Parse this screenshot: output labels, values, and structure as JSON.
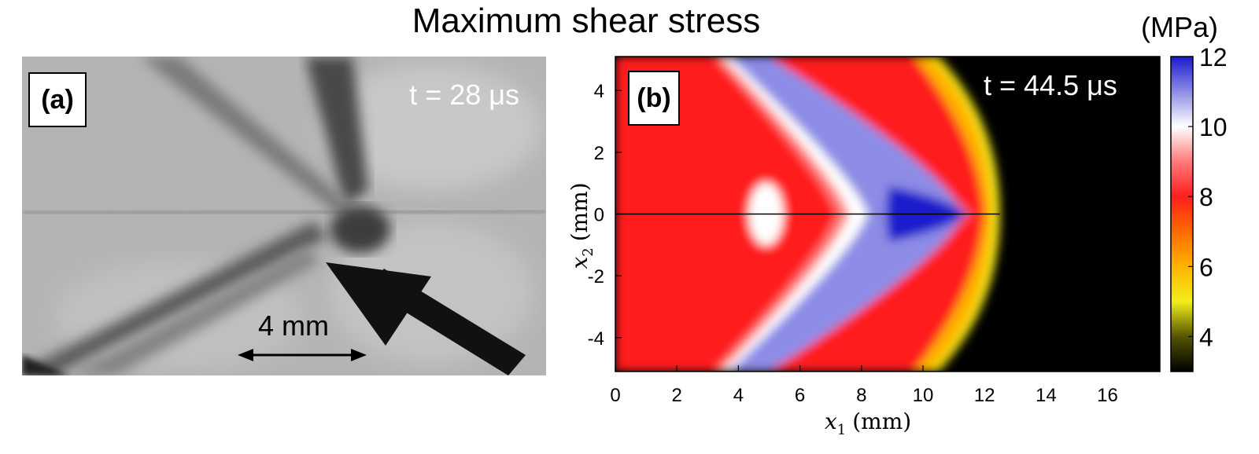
{
  "title": "Maximum shear stress",
  "panel_a": {
    "label": "(a)",
    "time_label": "t = 28 μs",
    "scale_bar_label": "4 mm"
  },
  "panel_b": {
    "label": "(b)",
    "time_label": "t = 44.5 μs",
    "colorbar_unit": "(MPa)"
  },
  "chart_data": {
    "type": "heatmap",
    "title": "Maximum shear stress",
    "xlabel": "x1 (mm)",
    "ylabel": "x2 (mm)",
    "xlim": [
      0,
      17.7
    ],
    "ylim": [
      -5.1,
      5.1
    ],
    "x_ticks": [
      0,
      2,
      4,
      6,
      8,
      10,
      12,
      14,
      16
    ],
    "y_ticks": [
      4,
      2,
      0,
      -2,
      -4
    ],
    "colorbar": {
      "label": "(MPa)",
      "range": [
        3,
        12
      ],
      "ticks": [
        4,
        6,
        8,
        10,
        12
      ],
      "colormap": [
        {
          "value": 3,
          "color": "#000000"
        },
        {
          "value": 4,
          "color": "#555500"
        },
        {
          "value": 5,
          "color": "#f2ee1a"
        },
        {
          "value": 6,
          "color": "#ffb300"
        },
        {
          "value": 7,
          "color": "#ff6a00"
        },
        {
          "value": 8,
          "color": "#ff1e1e"
        },
        {
          "value": 9,
          "color": "#ff7a7a"
        },
        {
          "value": 10,
          "color": "#ffffff"
        },
        {
          "value": 11,
          "color": "#8c8ce6"
        },
        {
          "value": 12,
          "color": "#1a1acc"
        }
      ]
    },
    "features": {
      "crack_line_x2": 0,
      "crack_tip_x1": 11.8,
      "field_front_x1": 12.5,
      "max_stress_region_x1": [
        9,
        11.5
      ]
    },
    "grid": false
  }
}
